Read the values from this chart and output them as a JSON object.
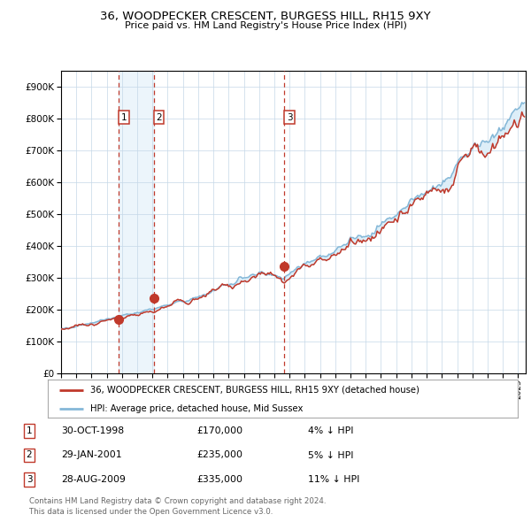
{
  "title": "36, WOODPECKER CRESCENT, BURGESS HILL, RH15 9XY",
  "subtitle": "Price paid vs. HM Land Registry's House Price Index (HPI)",
  "legend_line1": "36, WOODPECKER CRESCENT, BURGESS HILL, RH15 9XY (detached house)",
  "legend_line2": "HPI: Average price, detached house, Mid Sussex",
  "sale1_date": "30-OCT-1998",
  "sale1_price": 170000,
  "sale1_year": 1998.79,
  "sale1_label": "4% ↓ HPI",
  "sale2_date": "29-JAN-2001",
  "sale2_price": 235000,
  "sale2_year": 2001.08,
  "sale2_label": "5% ↓ HPI",
  "sale3_date": "28-AUG-2009",
  "sale3_price": 335000,
  "sale3_year": 2009.66,
  "sale3_label": "11% ↓ HPI",
  "footer1": "Contains HM Land Registry data © Crown copyright and database right 2024.",
  "footer2": "This data is licensed under the Open Government Licence v3.0.",
  "red_color": "#c0392b",
  "blue_color": "#85b8d8",
  "shade_color": "#ddeef8",
  "grid_color": "#c5d8e8",
  "bg_color": "#ffffff",
  "ylim": [
    0,
    950000
  ],
  "yticks": [
    0,
    100000,
    200000,
    300000,
    400000,
    500000,
    600000,
    700000,
    800000,
    900000
  ],
  "xmin": 1995,
  "xmax": 2025.5
}
